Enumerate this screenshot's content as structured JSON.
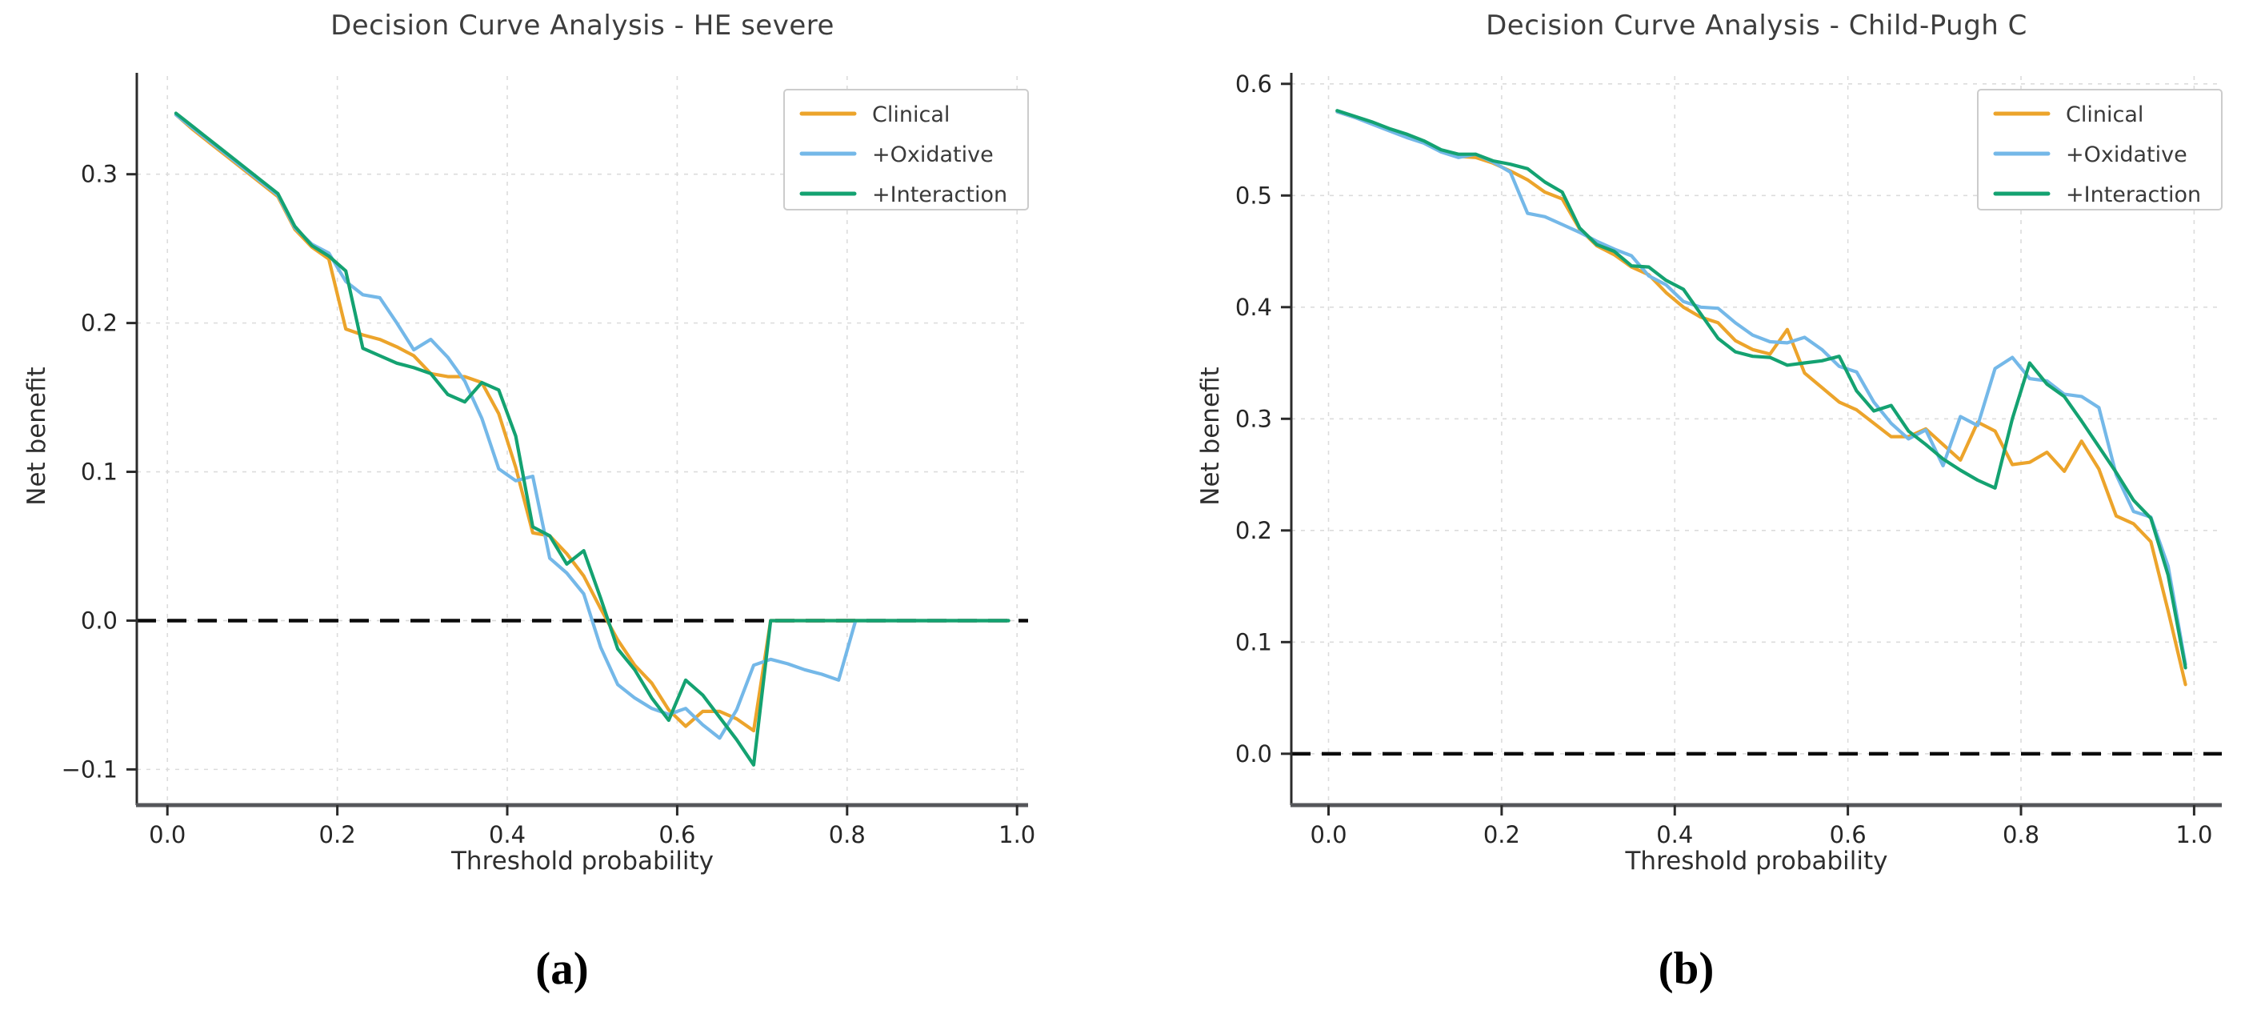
{
  "figure": {
    "background": "#ffffff"
  },
  "chart_data": [
    {
      "type": "line",
      "title": "Decision Curve Analysis - HE severe",
      "xlabel": "Threshold probability",
      "ylabel": "Net benefit",
      "caption": "(a)",
      "grid": true,
      "legend_position": "top-right",
      "xlim": [
        -0.036,
        1.013
      ],
      "ylim": [
        -0.124,
        0.366
      ],
      "xticks": [
        0.0,
        0.2,
        0.4,
        0.6,
        0.8,
        1.0
      ],
      "xtick_labels": [
        "0.0",
        "0.2",
        "0.4",
        "0.6",
        "0.8",
        "1.0"
      ],
      "yticks": [
        -0.1,
        0.0,
        0.1,
        0.2,
        0.3
      ],
      "ytick_labels": [
        "−0.1",
        "0.0",
        "0.1",
        "0.2",
        "0.3"
      ],
      "zero_line": {
        "y": 0.0,
        "color": "#0b0b0b",
        "style": "dashed"
      },
      "x": [
        0.01,
        0.03,
        0.05,
        0.07,
        0.09,
        0.11,
        0.13,
        0.15,
        0.17,
        0.19,
        0.21,
        0.23,
        0.25,
        0.27,
        0.29,
        0.31,
        0.33,
        0.35,
        0.37,
        0.39,
        0.41,
        0.43,
        0.45,
        0.47,
        0.49,
        0.51,
        0.53,
        0.55,
        0.57,
        0.59,
        0.61,
        0.63,
        0.65,
        0.67,
        0.69,
        0.71,
        0.73,
        0.75,
        0.77,
        0.79,
        0.81,
        0.83,
        0.85,
        0.87,
        0.89,
        0.91,
        0.93,
        0.95,
        0.97,
        0.99
      ],
      "series": [
        {
          "name": "Clinical",
          "color": "#ECA42B",
          "values": [
            0.34,
            0.33,
            0.321,
            0.312,
            0.303,
            0.294,
            0.285,
            0.263,
            0.251,
            0.243,
            0.196,
            0.192,
            0.189,
            0.184,
            0.178,
            0.166,
            0.164,
            0.164,
            0.16,
            0.139,
            0.103,
            0.059,
            0.057,
            0.045,
            0.03,
            0.008,
            -0.013,
            -0.03,
            -0.042,
            -0.06,
            -0.071,
            -0.061,
            -0.061,
            -0.066,
            -0.074,
            0.0,
            0.0,
            0.0,
            0.0,
            0.0,
            0.0,
            0.0,
            0.0,
            0.0,
            0.0,
            0.0,
            0.0,
            0.0,
            0.0,
            0.0
          ]
        },
        {
          "name": "+Oxidative",
          "color": "#74B8E8",
          "values": [
            0.34,
            0.331,
            0.322,
            0.313,
            0.304,
            0.295,
            0.286,
            0.264,
            0.253,
            0.247,
            0.228,
            0.219,
            0.217,
            0.2,
            0.182,
            0.189,
            0.177,
            0.161,
            0.136,
            0.102,
            0.094,
            0.097,
            0.042,
            0.032,
            0.018,
            -0.018,
            -0.043,
            -0.052,
            -0.059,
            -0.063,
            -0.059,
            -0.07,
            -0.079,
            -0.06,
            -0.03,
            -0.026,
            -0.029,
            -0.033,
            -0.036,
            -0.04,
            0.0,
            0.0,
            0.0,
            0.0,
            0.0,
            0.0,
            0.0,
            0.0,
            0.0,
            0.0
          ]
        },
        {
          "name": "+Interaction",
          "color": "#14A271",
          "values": [
            0.341,
            0.332,
            0.323,
            0.314,
            0.305,
            0.296,
            0.287,
            0.265,
            0.252,
            0.245,
            0.235,
            0.183,
            0.178,
            0.173,
            0.17,
            0.166,
            0.152,
            0.147,
            0.16,
            0.155,
            0.124,
            0.063,
            0.057,
            0.038,
            0.047,
            0.015,
            -0.019,
            -0.033,
            -0.052,
            -0.067,
            -0.04,
            -0.05,
            -0.065,
            -0.08,
            -0.097,
            0.0,
            0.0,
            0.0,
            0.0,
            0.0,
            0.0,
            0.0,
            0.0,
            0.0,
            0.0,
            0.0,
            0.0,
            0.0,
            0.0,
            0.0
          ]
        }
      ]
    },
    {
      "type": "line",
      "title": "Decision Curve Analysis - Child-Pugh C",
      "xlabel": "Threshold probability",
      "ylabel": "Net benefit",
      "caption": "(b)",
      "grid": true,
      "legend_position": "top-right",
      "xlim": [
        -0.043,
        1.032
      ],
      "ylim": [
        -0.046,
        0.607
      ],
      "xticks": [
        0.0,
        0.2,
        0.4,
        0.6,
        0.8,
        1.0
      ],
      "xtick_labels": [
        "0.0",
        "0.2",
        "0.4",
        "0.6",
        "0.8",
        "1.0"
      ],
      "yticks": [
        0.0,
        0.1,
        0.2,
        0.3,
        0.4,
        0.5,
        0.6
      ],
      "ytick_labels": [
        "0.0",
        "0.1",
        "0.2",
        "0.3",
        "0.4",
        "0.5",
        "0.6"
      ],
      "zero_line": {
        "y": 0.0,
        "color": "#0b0b0b",
        "style": "dashed"
      },
      "x": [
        0.01,
        0.03,
        0.05,
        0.07,
        0.09,
        0.11,
        0.13,
        0.15,
        0.17,
        0.19,
        0.21,
        0.23,
        0.25,
        0.27,
        0.29,
        0.31,
        0.33,
        0.35,
        0.37,
        0.39,
        0.41,
        0.43,
        0.45,
        0.47,
        0.49,
        0.51,
        0.53,
        0.55,
        0.57,
        0.59,
        0.61,
        0.63,
        0.65,
        0.67,
        0.69,
        0.71,
        0.73,
        0.75,
        0.77,
        0.79,
        0.81,
        0.83,
        0.85,
        0.87,
        0.89,
        0.91,
        0.93,
        0.95,
        0.97,
        0.99
      ],
      "series": [
        {
          "name": "Clinical",
          "color": "#ECA42B",
          "values": [
            0.575,
            0.57,
            0.565,
            0.559,
            0.554,
            0.548,
            0.54,
            0.535,
            0.534,
            0.529,
            0.522,
            0.514,
            0.503,
            0.497,
            0.47,
            0.455,
            0.447,
            0.436,
            0.429,
            0.413,
            0.4,
            0.391,
            0.386,
            0.37,
            0.362,
            0.358,
            0.38,
            0.341,
            0.328,
            0.315,
            0.308,
            0.296,
            0.284,
            0.284,
            0.291,
            0.277,
            0.263,
            0.297,
            0.289,
            0.259,
            0.261,
            0.27,
            0.253,
            0.28,
            0.255,
            0.213,
            0.206,
            0.19,
            0.128,
            0.062
          ]
        },
        {
          "name": "+Oxidative",
          "color": "#74B8E8",
          "values": [
            0.575,
            0.57,
            0.564,
            0.558,
            0.552,
            0.547,
            0.539,
            0.534,
            0.537,
            0.53,
            0.521,
            0.484,
            0.481,
            0.474,
            0.467,
            0.459,
            0.452,
            0.446,
            0.428,
            0.42,
            0.405,
            0.4,
            0.399,
            0.386,
            0.375,
            0.369,
            0.368,
            0.373,
            0.362,
            0.347,
            0.342,
            0.315,
            0.296,
            0.282,
            0.29,
            0.258,
            0.302,
            0.294,
            0.345,
            0.355,
            0.336,
            0.334,
            0.322,
            0.32,
            0.31,
            0.25,
            0.217,
            0.212,
            0.168,
            0.08
          ]
        },
        {
          "name": "+Interaction",
          "color": "#14A271",
          "values": [
            0.576,
            0.571,
            0.566,
            0.56,
            0.555,
            0.549,
            0.541,
            0.537,
            0.537,
            0.531,
            0.528,
            0.524,
            0.512,
            0.503,
            0.471,
            0.456,
            0.45,
            0.437,
            0.436,
            0.424,
            0.416,
            0.394,
            0.372,
            0.36,
            0.356,
            0.355,
            0.348,
            0.35,
            0.352,
            0.356,
            0.325,
            0.307,
            0.312,
            0.289,
            0.277,
            0.264,
            0.254,
            0.245,
            0.238,
            0.3,
            0.35,
            0.331,
            0.32,
            0.298,
            0.275,
            0.252,
            0.227,
            0.211,
            0.16,
            0.077
          ]
        }
      ]
    }
  ]
}
